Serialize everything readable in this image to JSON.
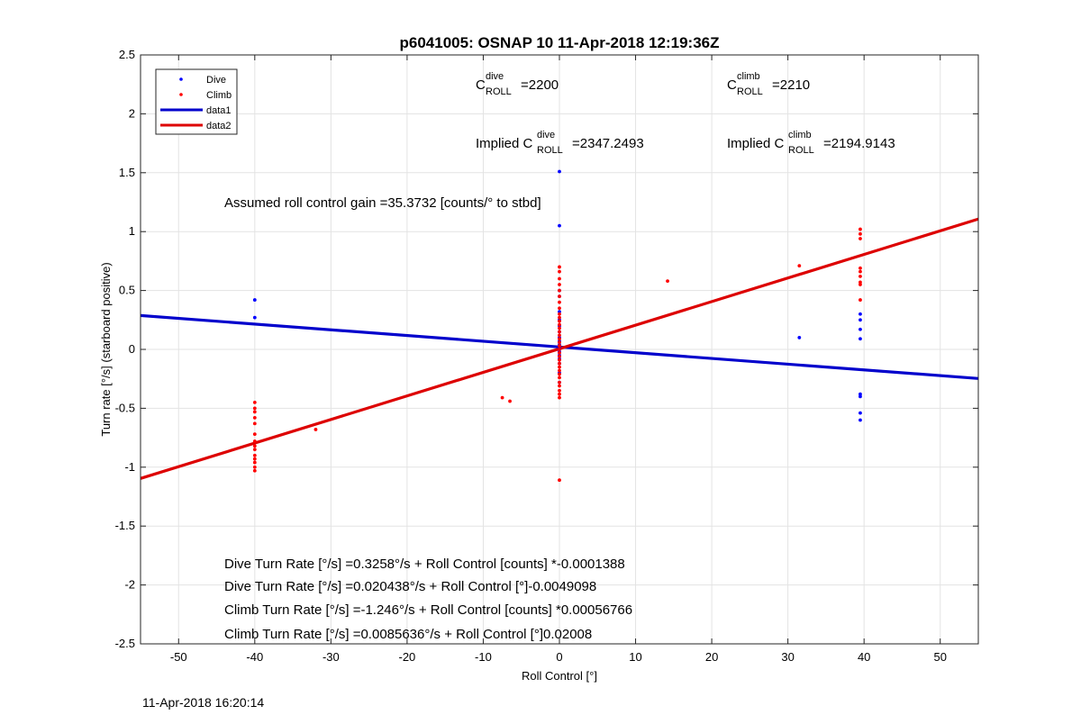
{
  "chart_data": {
    "type": "scatter",
    "title": "p6041005: OSNAP 10 11-Apr-2018 12:19:36Z",
    "xlabel": "Roll Control [°]",
    "ylabel": "Turn rate [°/s] (starboard positive)",
    "xlim": [
      -55,
      55
    ],
    "ylim": [
      -2.5,
      2.5
    ],
    "xticks": [
      -50,
      -40,
      -30,
      -20,
      -10,
      0,
      10,
      20,
      30,
      40,
      50
    ],
    "yticks": [
      -2.5,
      -2,
      -1.5,
      -1,
      -0.5,
      0,
      0.5,
      1,
      1.5,
      2,
      2.5
    ],
    "grid": true,
    "legend_position": "top-left",
    "colors": {
      "dive": "#0000ff",
      "climb": "#ff0000",
      "data1": "#0000cc",
      "data2": "#dd0000"
    },
    "series": [
      {
        "name": "Dive",
        "kind": "points",
        "points": [
          [
            -40,
            0.42
          ],
          [
            -40,
            0.27
          ],
          [
            0,
            1.51
          ],
          [
            0,
            1.05
          ],
          [
            0,
            0.5
          ],
          [
            0,
            0.45
          ],
          [
            0,
            0.32
          ],
          [
            0,
            0.25
          ],
          [
            0,
            0.2
          ],
          [
            0,
            0.15
          ],
          [
            0,
            0.1
          ],
          [
            0,
            0.07
          ],
          [
            0,
            0.04
          ],
          [
            0,
            0.02
          ],
          [
            0,
            0.0
          ],
          [
            0,
            -0.02
          ],
          [
            0,
            -0.05
          ],
          [
            0,
            -0.08
          ],
          [
            0,
            -0.12
          ],
          [
            0,
            -0.2
          ],
          [
            0,
            -0.28
          ],
          [
            31.5,
            0.1
          ],
          [
            39.5,
            0.3
          ],
          [
            39.5,
            0.25
          ],
          [
            39.5,
            0.17
          ],
          [
            39.5,
            0.09
          ],
          [
            39.5,
            -0.38
          ],
          [
            39.5,
            -0.4
          ],
          [
            39.5,
            -0.54
          ],
          [
            39.5,
            -0.6
          ]
        ]
      },
      {
        "name": "Climb",
        "kind": "points",
        "points": [
          [
            -40,
            -0.45
          ],
          [
            -40,
            -0.5
          ],
          [
            -40,
            -0.53
          ],
          [
            -40,
            -0.58
          ],
          [
            -40,
            -0.63
          ],
          [
            -40,
            -0.72
          ],
          [
            -40,
            -0.78
          ],
          [
            -40,
            -0.82
          ],
          [
            -40,
            -0.85
          ],
          [
            -40,
            -0.9
          ],
          [
            -40,
            -0.93
          ],
          [
            -40,
            -0.96
          ],
          [
            -40,
            -1.0
          ],
          [
            -40,
            -1.03
          ],
          [
            -32,
            -0.68
          ],
          [
            -7.5,
            -0.41
          ],
          [
            -6.5,
            -0.44
          ],
          [
            0,
            0.7
          ],
          [
            0,
            0.66
          ],
          [
            0,
            0.6
          ],
          [
            0,
            0.55
          ],
          [
            0,
            0.5
          ],
          [
            0,
            0.45
          ],
          [
            0,
            0.4
          ],
          [
            0,
            0.35
          ],
          [
            0,
            0.3
          ],
          [
            0,
            0.27
          ],
          [
            0,
            0.24
          ],
          [
            0,
            0.21
          ],
          [
            0,
            0.18
          ],
          [
            0,
            0.15
          ],
          [
            0,
            0.12
          ],
          [
            0,
            0.09
          ],
          [
            0,
            0.06
          ],
          [
            0,
            0.03
          ],
          [
            0,
            0.0
          ],
          [
            0,
            -0.03
          ],
          [
            0,
            -0.06
          ],
          [
            0,
            -0.09
          ],
          [
            0,
            -0.12
          ],
          [
            0,
            -0.15
          ],
          [
            0,
            -0.18
          ],
          [
            0,
            -0.21
          ],
          [
            0,
            -0.24
          ],
          [
            0,
            -0.28
          ],
          [
            0,
            -0.31
          ],
          [
            0,
            -0.35
          ],
          [
            0,
            -0.38
          ],
          [
            0,
            -0.41
          ],
          [
            0,
            -1.11
          ],
          [
            14.2,
            0.58
          ],
          [
            31.5,
            0.71
          ],
          [
            39.5,
            1.02
          ],
          [
            39.5,
            0.98
          ],
          [
            39.5,
            0.94
          ],
          [
            39.5,
            0.69
          ],
          [
            39.5,
            0.66
          ],
          [
            39.5,
            0.62
          ],
          [
            39.5,
            0.57
          ],
          [
            39.5,
            0.55
          ],
          [
            39.5,
            0.42
          ]
        ]
      },
      {
        "name": "data1",
        "kind": "line",
        "points": [
          [
            -55,
            0.2878
          ],
          [
            55,
            -0.2469
          ]
        ]
      },
      {
        "name": "data2",
        "kind": "line",
        "points": [
          [
            -55,
            -1.0958
          ],
          [
            55,
            1.1066
          ]
        ]
      }
    ]
  },
  "annotations": {
    "c_dive_main": "C",
    "c_dive_sup": "dive",
    "c_dive_sub": "ROLL",
    "c_dive_value": "=2200",
    "c_climb_main": "C",
    "c_climb_sup": "climb",
    "c_climb_sub": "ROLL",
    "c_climb_value": "=2210",
    "implied_dive_prefix": "Implied C",
    "implied_dive_sup": "dive",
    "implied_dive_sub": "ROLL",
    "implied_dive_value": "=2347.2493",
    "implied_climb_prefix": "Implied C",
    "implied_climb_sup": "climb",
    "implied_climb_sub": "ROLL",
    "implied_climb_value": "=2194.9143",
    "gain": "Assumed roll control gain =35.3732 [counts/° to stbd]",
    "eq1": "Dive Turn Rate [°/s] =0.3258°/s + Roll Control [counts] *-0.0001388",
    "eq2": "Dive Turn Rate [°/s] =0.020438°/s + Roll Control [°]-0.0049098",
    "eq3": "Climb Turn Rate [°/s] =-1.246°/s + Roll Control [counts] *0.00056766",
    "eq4": "Climb Turn Rate [°/s] =0.0085636°/s + Roll Control [°]0.02008"
  },
  "footer": {
    "timestamp": "11-Apr-2018 16:20:14"
  }
}
